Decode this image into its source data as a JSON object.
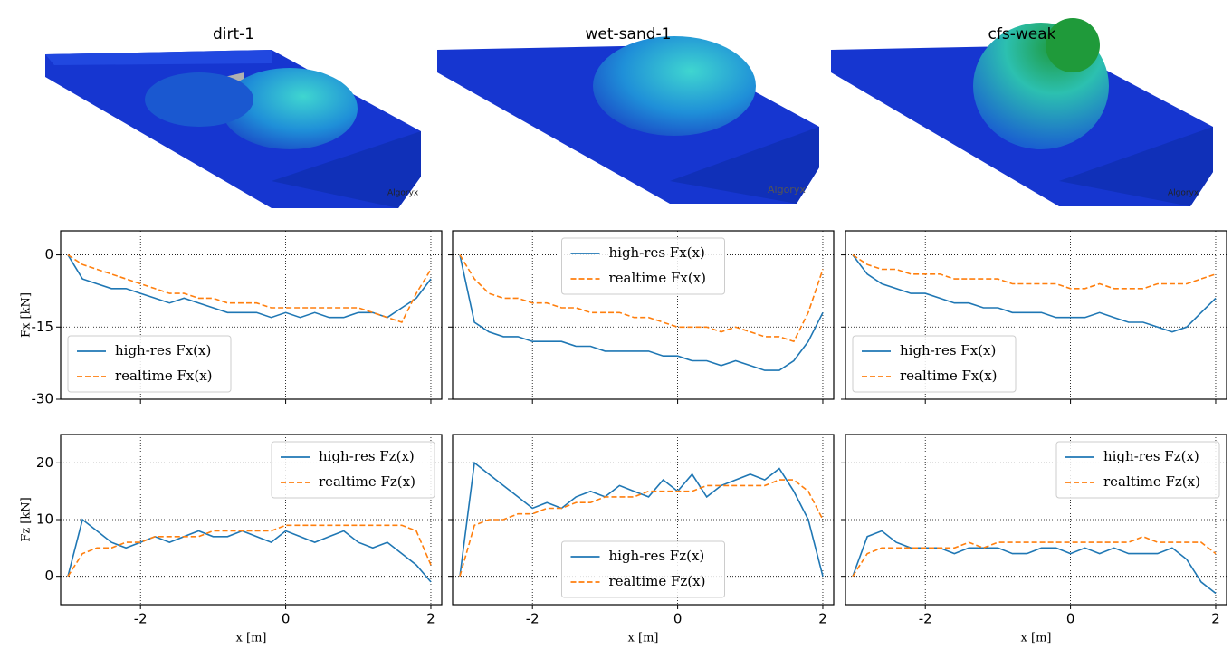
{
  "images": [
    {
      "title": "dirt-1",
      "watermark": "Algoryx"
    },
    {
      "title": "wet-sand-1",
      "watermark": "Algoryx"
    },
    {
      "title": "cfs-weak",
      "watermark": "Algoryx"
    }
  ],
  "chart_data": [
    {
      "type": "line",
      "ylabel": "Fx [kN]",
      "legend": "lower left",
      "grid": true,
      "show_xtick_labels": false,
      "show_ytick_labels": true,
      "x": [
        -3.0,
        -2.8,
        -2.6,
        -2.4,
        -2.2,
        -2.0,
        -1.8,
        -1.6,
        -1.4,
        -1.2,
        -1.0,
        -0.8,
        -0.6,
        -0.4,
        -0.2,
        0.0,
        0.2,
        0.4,
        0.6,
        0.8,
        1.0,
        1.2,
        1.4,
        1.6,
        1.8,
        2.0
      ],
      "xlim": [
        -3.1,
        2.15
      ],
      "ylim": [
        -30,
        5
      ],
      "xticks": [
        -2,
        0,
        2
      ],
      "yticks": [
        0,
        -15,
        -30
      ],
      "series": [
        {
          "name": "high-res Fx(x)",
          "color": "#1f77b4",
          "style": "solid",
          "values": [
            0,
            -5,
            -6,
            -7,
            -7,
            -8,
            -9,
            -10,
            -9,
            -10,
            -11,
            -12,
            -12,
            -12,
            -13,
            -12,
            -13,
            -12,
            -13,
            -13,
            -12,
            -12,
            -13,
            -11,
            -9,
            -5
          ]
        },
        {
          "name": "realtime Fx(x)",
          "color": "#ff7f0e",
          "style": "dashed",
          "values": [
            0,
            -2,
            -3,
            -4,
            -5,
            -6,
            -7,
            -8,
            -8,
            -9,
            -9,
            -10,
            -10,
            -10,
            -11,
            -11,
            -11,
            -11,
            -11,
            -11,
            -11,
            -12,
            -13,
            -14,
            -8,
            -3
          ]
        }
      ]
    },
    {
      "type": "line",
      "legend": "upper center",
      "grid": true,
      "show_xtick_labels": false,
      "show_ytick_labels": false,
      "x": [
        -3.0,
        -2.8,
        -2.6,
        -2.4,
        -2.2,
        -2.0,
        -1.8,
        -1.6,
        -1.4,
        -1.2,
        -1.0,
        -0.8,
        -0.6,
        -0.4,
        -0.2,
        0.0,
        0.2,
        0.4,
        0.6,
        0.8,
        1.0,
        1.2,
        1.4,
        1.6,
        1.8,
        2.0
      ],
      "xlim": [
        -3.1,
        2.15
      ],
      "ylim": [
        -30,
        5
      ],
      "xticks": [
        -2,
        0,
        2
      ],
      "yticks": [
        0,
        -15,
        -30
      ],
      "series": [
        {
          "name": "high-res Fx(x)",
          "color": "#1f77b4",
          "style": "solid",
          "values": [
            0,
            -14,
            -16,
            -17,
            -17,
            -18,
            -18,
            -18,
            -19,
            -19,
            -20,
            -20,
            -20,
            -20,
            -21,
            -21,
            -22,
            -22,
            -23,
            -22,
            -23,
            -24,
            -24,
            -22,
            -18,
            -12
          ]
        },
        {
          "name": "realtime Fx(x)",
          "color": "#ff7f0e",
          "style": "dashed",
          "values": [
            0,
            -5,
            -8,
            -9,
            -9,
            -10,
            -10,
            -11,
            -11,
            -12,
            -12,
            -12,
            -13,
            -13,
            -14,
            -15,
            -15,
            -15,
            -16,
            -15,
            -16,
            -17,
            -17,
            -18,
            -12,
            -3
          ]
        }
      ]
    },
    {
      "type": "line",
      "legend": "lower left",
      "grid": true,
      "show_xtick_labels": false,
      "show_ytick_labels": false,
      "x": [
        -3.0,
        -2.8,
        -2.6,
        -2.4,
        -2.2,
        -2.0,
        -1.8,
        -1.6,
        -1.4,
        -1.2,
        -1.0,
        -0.8,
        -0.6,
        -0.4,
        -0.2,
        0.0,
        0.2,
        0.4,
        0.6,
        0.8,
        1.0,
        1.2,
        1.4,
        1.6,
        1.8,
        2.0
      ],
      "xlim": [
        -3.1,
        2.15
      ],
      "ylim": [
        -30,
        5
      ],
      "xticks": [
        -2,
        0,
        2
      ],
      "yticks": [
        0,
        -15,
        -30
      ],
      "series": [
        {
          "name": "high-res Fx(x)",
          "color": "#1f77b4",
          "style": "solid",
          "values": [
            0,
            -4,
            -6,
            -7,
            -8,
            -8,
            -9,
            -10,
            -10,
            -11,
            -11,
            -12,
            -12,
            -12,
            -13,
            -13,
            -13,
            -12,
            -13,
            -14,
            -14,
            -15,
            -16,
            -15,
            -12,
            -9
          ]
        },
        {
          "name": "realtime Fx(x)",
          "color": "#ff7f0e",
          "style": "dashed",
          "values": [
            0,
            -2,
            -3,
            -3,
            -4,
            -4,
            -4,
            -5,
            -5,
            -5,
            -5,
            -6,
            -6,
            -6,
            -6,
            -7,
            -7,
            -6,
            -7,
            -7,
            -7,
            -6,
            -6,
            -6,
            -5,
            -4
          ]
        }
      ]
    },
    {
      "type": "line",
      "ylabel": "Fz [kN]",
      "xlabel": "x [m]",
      "legend": "upper right",
      "grid": true,
      "show_xtick_labels": true,
      "show_ytick_labels": true,
      "x": [
        -3.0,
        -2.8,
        -2.6,
        -2.4,
        -2.2,
        -2.0,
        -1.8,
        -1.6,
        -1.4,
        -1.2,
        -1.0,
        -0.8,
        -0.6,
        -0.4,
        -0.2,
        0.0,
        0.2,
        0.4,
        0.6,
        0.8,
        1.0,
        1.2,
        1.4,
        1.6,
        1.8,
        2.0
      ],
      "xlim": [
        -3.1,
        2.15
      ],
      "ylim": [
        -5,
        25
      ],
      "xticks": [
        -2,
        0,
        2
      ],
      "yticks": [
        0,
        10,
        20
      ],
      "series": [
        {
          "name": "high-res Fz(x)",
          "color": "#1f77b4",
          "style": "solid",
          "values": [
            0,
            10,
            8,
            6,
            5,
            6,
            7,
            6,
            7,
            8,
            7,
            7,
            8,
            7,
            6,
            8,
            7,
            6,
            7,
            8,
            6,
            5,
            6,
            4,
            2,
            -1
          ]
        },
        {
          "name": "realtime Fz(x)",
          "color": "#ff7f0e",
          "style": "dashed",
          "values": [
            0,
            4,
            5,
            5,
            6,
            6,
            7,
            7,
            7,
            7,
            8,
            8,
            8,
            8,
            8,
            9,
            9,
            9,
            9,
            9,
            9,
            9,
            9,
            9,
            8,
            2
          ]
        }
      ]
    },
    {
      "type": "line",
      "xlabel": "x [m]",
      "legend": "lower center",
      "grid": true,
      "show_xtick_labels": true,
      "show_ytick_labels": false,
      "x": [
        -3.0,
        -2.8,
        -2.6,
        -2.4,
        -2.2,
        -2.0,
        -1.8,
        -1.6,
        -1.4,
        -1.2,
        -1.0,
        -0.8,
        -0.6,
        -0.4,
        -0.2,
        0.0,
        0.2,
        0.4,
        0.6,
        0.8,
        1.0,
        1.2,
        1.4,
        1.6,
        1.8,
        2.0
      ],
      "xlim": [
        -3.1,
        2.15
      ],
      "ylim": [
        -5,
        25
      ],
      "xticks": [
        -2,
        0,
        2
      ],
      "yticks": [
        0,
        10,
        20
      ],
      "series": [
        {
          "name": "high-res Fz(x)",
          "color": "#1f77b4",
          "style": "solid",
          "values": [
            0,
            20,
            18,
            16,
            14,
            12,
            13,
            12,
            14,
            15,
            14,
            16,
            15,
            14,
            17,
            15,
            18,
            14,
            16,
            17,
            18,
            17,
            19,
            15,
            10,
            0
          ]
        },
        {
          "name": "realtime Fz(x)",
          "color": "#ff7f0e",
          "style": "dashed",
          "values": [
            0,
            9,
            10,
            10,
            11,
            11,
            12,
            12,
            13,
            13,
            14,
            14,
            14,
            15,
            15,
            15,
            15,
            16,
            16,
            16,
            16,
            16,
            17,
            17,
            15,
            10
          ]
        }
      ]
    },
    {
      "type": "line",
      "xlabel": "x [m]",
      "legend": "upper right",
      "grid": true,
      "show_xtick_labels": true,
      "show_ytick_labels": false,
      "x": [
        -3.0,
        -2.8,
        -2.6,
        -2.4,
        -2.2,
        -2.0,
        -1.8,
        -1.6,
        -1.4,
        -1.2,
        -1.0,
        -0.8,
        -0.6,
        -0.4,
        -0.2,
        0.0,
        0.2,
        0.4,
        0.6,
        0.8,
        1.0,
        1.2,
        1.4,
        1.6,
        1.8,
        2.0
      ],
      "xlim": [
        -3.1,
        2.15
      ],
      "ylim": [
        -5,
        25
      ],
      "xticks": [
        -2,
        0,
        2
      ],
      "yticks": [
        0,
        10,
        20
      ],
      "series": [
        {
          "name": "high-res Fz(x)",
          "color": "#1f77b4",
          "style": "solid",
          "values": [
            0,
            7,
            8,
            6,
            5,
            5,
            5,
            4,
            5,
            5,
            5,
            4,
            4,
            5,
            5,
            4,
            5,
            4,
            5,
            4,
            4,
            4,
            5,
            3,
            -1,
            -3
          ]
        },
        {
          "name": "realtime Fz(x)",
          "color": "#ff7f0e",
          "style": "dashed",
          "values": [
            0,
            4,
            5,
            5,
            5,
            5,
            5,
            5,
            6,
            5,
            6,
            6,
            6,
            6,
            6,
            6,
            6,
            6,
            6,
            6,
            7,
            6,
            6,
            6,
            6,
            4
          ]
        }
      ]
    }
  ]
}
